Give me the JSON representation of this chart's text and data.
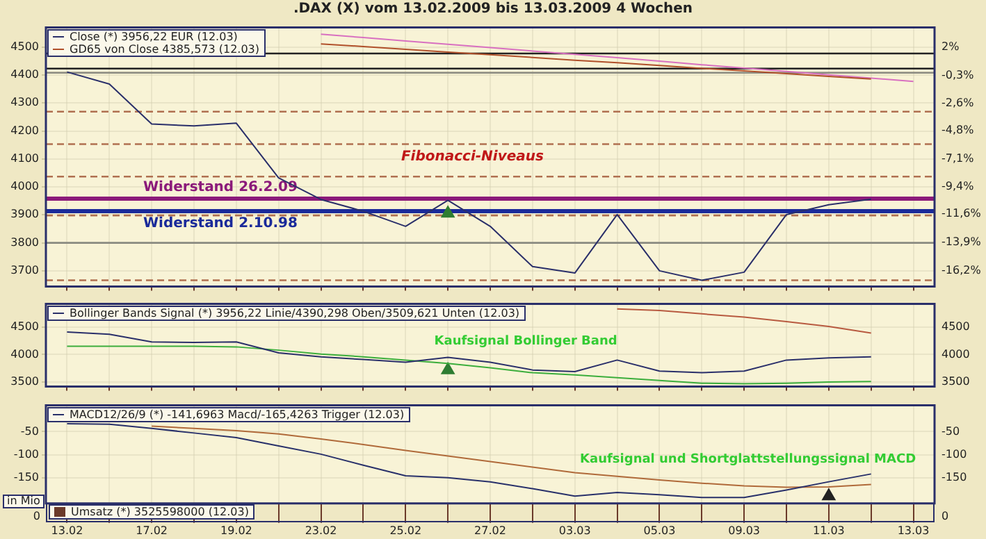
{
  "chart_data": [
    {
      "type": "line",
      "title": ".DAX (X) vom 13.02.2009 bis 13.03.2009 4 Wochen",
      "categories": [
        "13.02",
        null,
        "17.02",
        null,
        "19.02",
        null,
        "23.02",
        null,
        "25.02",
        null,
        "27.02",
        null,
        "03.03",
        null,
        "05.03",
        null,
        "09.03",
        null,
        "11.03",
        null,
        "13.03"
      ],
      "series": [
        {
          "name": "Close (*) 3956,22 EUR (12.03)",
          "color": "#2a2f6a",
          "values": [
            4411,
            4368,
            4225,
            4218,
            4228,
            4032,
            3955,
            3913,
            3859,
            3952,
            3859,
            3715,
            3692,
            3901,
            3700,
            3666,
            3695,
            3901,
            3936,
            3956,
            null
          ]
        },
        {
          "name": "GD65 von Close 4385,573 (12.03)",
          "color": "#b0502a",
          "values": [
            null,
            null,
            null,
            null,
            null,
            null,
            4511,
            4502,
            4492,
            4482,
            4473,
            4463,
            4453,
            4444,
            4434,
            4424,
            4415,
            4405,
            4395,
            4386,
            null
          ]
        },
        {
          "color": "#d870c0",
          "values": [
            null,
            null,
            null,
            null,
            null,
            null,
            4546,
            4534,
            4522,
            4510,
            4498,
            4486,
            4474,
            4462,
            4450,
            4437,
            4425,
            4413,
            4401,
            4389,
            4377
          ]
        },
        {
          "type": "scatter",
          "marker": "triangle",
          "color": "#2e7d32",
          "values": [
            null,
            null,
            null,
            null,
            null,
            null,
            null,
            null,
            null,
            3905,
            null,
            null,
            null,
            null,
            null,
            null,
            null,
            null,
            null,
            null,
            null
          ]
        }
      ],
      "ylim": [
        3644,
        4570
      ],
      "yticks": [
        3700,
        3800,
        3900,
        4000,
        4100,
        4200,
        4300,
        4400,
        4500
      ],
      "y2lim": [
        -17.5,
        3.6
      ],
      "y2ticks": [
        {
          "value": 2,
          "label": "2%"
        },
        {
          "value": -0.3,
          "label": "-0,3%"
        },
        {
          "value": -2.6,
          "label": "-2,6%"
        },
        {
          "value": -4.8,
          "label": "-4,8%"
        },
        {
          "value": -7.1,
          "label": "-7,1%"
        },
        {
          "value": -9.4,
          "label": "-9,4%"
        },
        {
          "value": -11.6,
          "label": "-11,6%"
        },
        {
          "value": -13.9,
          "label": "-13,9%"
        },
        {
          "value": -16.2,
          "label": "-16,2%"
        }
      ],
      "ref_lines": [
        {
          "axis": "y",
          "value": 4477,
          "color": "#222222"
        },
        {
          "axis": "y",
          "value": 4423,
          "color": "#222222"
        },
        {
          "axis": "y",
          "value": 4408,
          "color": "#8a8a80"
        },
        {
          "axis": "y",
          "value": 4269,
          "color": "#b07050",
          "line_style": "dashed"
        },
        {
          "axis": "y",
          "value": 4153,
          "color": "#b07050",
          "line_style": "dashed"
        },
        {
          "axis": "y",
          "value": 4037,
          "color": "#b07050",
          "line_style": "dashed"
        },
        {
          "axis": "y",
          "value": 3898,
          "color": "#b07050",
          "line_style": "dashed"
        },
        {
          "axis": "y",
          "value": 3800,
          "color": "#8a8a80"
        },
        {
          "axis": "y",
          "value": 3666,
          "color": "#b07050",
          "line_style": "dashed"
        },
        {
          "axis": "y",
          "value": 3958,
          "color": "#8b1a7a",
          "label": "Widerstand 26.2.09"
        },
        {
          "axis": "y",
          "value": 3913,
          "color": "#1a2a9a",
          "label": "Widerstand 2.10.98"
        }
      ],
      "annotations": [
        "Fibonacci-Niveaus"
      ],
      "marker": "none",
      "grid": true,
      "legend": "top left",
      "tick_labels": "y"
    },
    {
      "type": "line",
      "categories": [
        "13.02",
        null,
        "17.02",
        null,
        "19.02",
        null,
        "23.02",
        null,
        "25.02",
        null,
        "27.02",
        null,
        "03.03",
        null,
        "05.03",
        null,
        "09.03",
        null,
        "11.03",
        null,
        "13.03"
      ],
      "series": [
        {
          "name": "Bollinger Bands Signal (*) 3956,22 Linie/4390,298 Oben/3509,621 Unten (12.03)",
          "color": "#2a2f6a",
          "values": [
            4410,
            4370,
            4230,
            4220,
            4230,
            4030,
            3960,
            3910,
            3860,
            3950,
            3860,
            3720,
            3690,
            3900,
            3700,
            3670,
            3700,
            3900,
            3940,
            3960,
            null
          ]
        },
        {
          "color": "#b85a40",
          "values": [
            null,
            null,
            null,
            null,
            null,
            null,
            null,
            null,
            null,
            null,
            null,
            null,
            null,
            4830,
            4800,
            4740,
            4680,
            4600,
            4510,
            4390,
            null
          ]
        },
        {
          "color": "#3cae3c",
          "values": [
            4150,
            4150,
            4150,
            4150,
            4140,
            4080,
            4010,
            3960,
            3900,
            3840,
            3760,
            3670,
            3630,
            3580,
            3530,
            3480,
            3470,
            3480,
            3500,
            3510,
            null
          ]
        },
        {
          "type": "scatter",
          "marker": "triangle",
          "color": "#2e7d32",
          "values": [
            null,
            null,
            null,
            null,
            null,
            null,
            null,
            null,
            null,
            3720,
            null,
            null,
            null,
            null,
            null,
            null,
            null,
            null,
            null,
            null,
            null
          ]
        }
      ],
      "ylim": [
        3420,
        4920
      ],
      "yticks": [
        3500,
        4000,
        4500
      ],
      "y2lim": [
        3420,
        4920
      ],
      "y2ticks": [
        3500,
        4000,
        4500
      ],
      "annotations": [
        "Kaufsignal Bollinger Band"
      ],
      "marker": "none",
      "grid": true,
      "legend": "top left",
      "tick_labels": "y"
    },
    {
      "type": "line",
      "categories": [
        "13.02",
        null,
        "17.02",
        null,
        "19.02",
        null,
        "23.02",
        null,
        "25.02",
        null,
        "27.02",
        null,
        "03.03",
        null,
        "05.03",
        null,
        "09.03",
        null,
        "11.03",
        null,
        "13.03"
      ],
      "series": [
        {
          "name": "MACD12/26/9 (*) -141,6963 Macd/-165,4263 Trigger (12.03)",
          "color": "#28306a",
          "values": [
            -33,
            -34,
            -43,
            -53,
            -63,
            -81,
            -99,
            -123,
            -146,
            -150,
            -159,
            -174,
            -190,
            -182,
            -187,
            -193,
            -193,
            -177,
            -159,
            -142,
            null
          ]
        },
        {
          "color": "#b06a3a",
          "values": [
            null,
            null,
            -38,
            -43,
            -48,
            -55,
            -66,
            -78,
            -91,
            -103,
            -115,
            -127,
            -139,
            -147,
            -155,
            -162,
            -168,
            -171,
            -170,
            -165,
            null
          ]
        },
        {
          "type": "scatter",
          "marker": "triangle",
          "color": "#222222",
          "values": [
            null,
            null,
            null,
            null,
            null,
            null,
            null,
            null,
            null,
            null,
            null,
            null,
            null,
            null,
            null,
            null,
            null,
            null,
            -190,
            null,
            null
          ]
        }
      ],
      "ylim": [
        -206,
        7
      ],
      "yticks": [
        -150,
        -100,
        -50
      ],
      "y2lim": [
        -206,
        7
      ],
      "y2ticks": [
        -150,
        -100,
        -50
      ],
      "annotations": [
        "Kaufsignal und Shortglattstellungssignal MACD"
      ],
      "marker": "none",
      "grid": true,
      "legend": "top left"
    },
    {
      "type": "other",
      "ylabel": "in Mio",
      "annotations": [
        "Umsatz (*) 3525598000 (12.03)",
        "0",
        "0"
      ]
    }
  ]
}
